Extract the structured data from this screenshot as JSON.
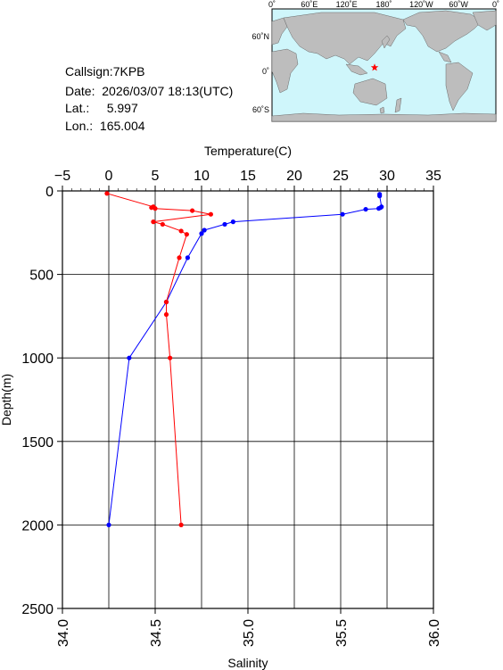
{
  "station": {
    "callsign_label": "Callsign:7KPB",
    "date_label": "Date:  2026/03/07 18:13(UTC)",
    "lat_label": "Lat.:     5.997",
    "lon_label": "Lon.:  165.004"
  },
  "map": {
    "lon_ticks": [
      "0˚",
      "60˚E",
      "120˚E",
      "180˚",
      "120˚W",
      "60˚W",
      "0˚"
    ],
    "lat_ticks": [
      "60˚N",
      "0˚",
      "60˚S"
    ],
    "ocean_color": "#cff6fb",
    "land_color": "#bdbdbd",
    "marker": {
      "lon": 165.004,
      "lat": 5.997,
      "color": "#ff0000"
    }
  },
  "chart_data": {
    "type": "line",
    "ylabel": "Depth(m)",
    "ylim": [
      0,
      2500
    ],
    "y_inverted": true,
    "yticks": [
      0,
      500,
      1000,
      1500,
      2000,
      2500
    ],
    "y_tick_labels": [
      "0",
      "500",
      "1000",
      "1500",
      "2000",
      "2500"
    ],
    "grid": true,
    "top_axis": {
      "label": "Temperature(C)",
      "lim": [
        -5,
        35
      ],
      "ticks": [
        -5,
        0,
        5,
        10,
        15,
        20,
        25,
        30,
        35
      ],
      "tick_labels": [
        "−5",
        "0",
        "5",
        "10",
        "15",
        "20",
        "25",
        "30",
        "35"
      ]
    },
    "bottom_axis": {
      "label": "Salinity",
      "lim": [
        34.0,
        36.0
      ],
      "ticks": [
        34.0,
        34.5,
        35.0,
        35.5,
        36.0
      ],
      "tick_labels": [
        "34.0",
        "34.5",
        "35.0",
        "35.5",
        "36.0"
      ]
    },
    "series": [
      {
        "axis": "top",
        "color": "#0000ff",
        "points": [
          [
            29.2,
            20
          ],
          [
            29.2,
            30
          ],
          [
            29.4,
            95
          ],
          [
            29.3,
            100
          ],
          [
            29.1,
            105
          ],
          [
            27.7,
            110
          ],
          [
            25.2,
            140
          ],
          [
            13.4,
            185
          ],
          [
            12.5,
            200
          ],
          [
            10.3,
            235
          ],
          [
            10.0,
            255
          ],
          [
            8.5,
            400
          ],
          [
            6.2,
            665
          ],
          [
            2.2,
            1000
          ],
          [
            0.0,
            2000
          ]
        ]
      },
      {
        "axis": "bottom",
        "color": "#ff0000",
        "points": [
          [
            34.24,
            15
          ],
          [
            34.49,
            95
          ],
          [
            34.48,
            100
          ],
          [
            34.5,
            105
          ],
          [
            34.7,
            118
          ],
          [
            34.8,
            140
          ],
          [
            34.49,
            185
          ],
          [
            34.54,
            200
          ],
          [
            34.64,
            240
          ],
          [
            34.67,
            260
          ],
          [
            34.63,
            400
          ],
          [
            34.56,
            665
          ],
          [
            34.56,
            740
          ],
          [
            34.58,
            1000
          ],
          [
            34.64,
            2000
          ]
        ]
      }
    ]
  }
}
